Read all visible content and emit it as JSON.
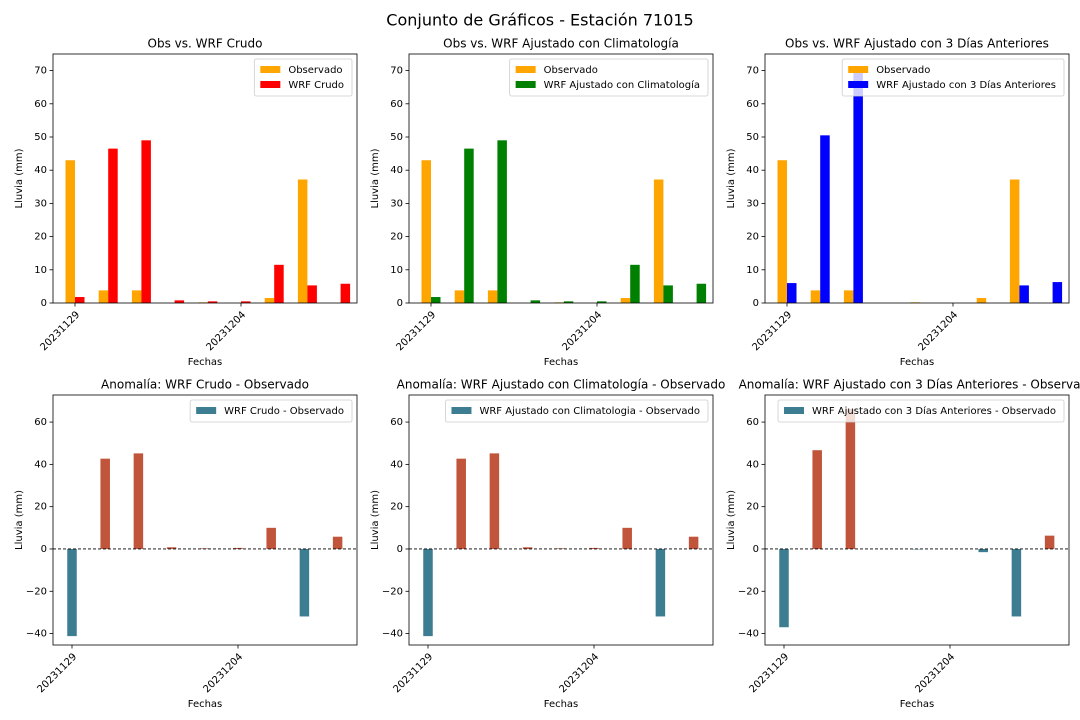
{
  "title": "Conjunto de Gráficos - Estación 71015",
  "chart_data": [
    {
      "type": "bar",
      "title": "Obs vs. WRF Crudo",
      "xlabel": "Fechas",
      "ylabel": "Lluvia (mm)",
      "categories": [
        "20231129",
        null,
        null,
        null,
        null,
        "20231204",
        null,
        null,
        null
      ],
      "series": [
        {
          "name": "Observado",
          "color": "#ffa500",
          "values": [
            43,
            3.8,
            3.8,
            0,
            0.2,
            0,
            1.5,
            37.2,
            0
          ]
        },
        {
          "name": "WRF Crudo",
          "color": "#ff0000",
          "values": [
            1.8,
            46.5,
            49,
            0.8,
            0.5,
            0.5,
            11.5,
            5.3,
            5.8
          ]
        }
      ],
      "ylim": [
        0,
        75
      ],
      "yticks": [
        0,
        10,
        20,
        30,
        40,
        50,
        60,
        70
      ],
      "legend": "upper right"
    },
    {
      "type": "bar",
      "title": "Obs vs. WRF Ajustado con Climatología",
      "xlabel": "Fechas",
      "ylabel": "Lluvia (mm)",
      "categories": [
        "20231129",
        null,
        null,
        null,
        null,
        "20231204",
        null,
        null,
        null
      ],
      "series": [
        {
          "name": "Observado",
          "color": "#ffa500",
          "values": [
            43,
            3.8,
            3.8,
            0,
            0.2,
            0,
            1.5,
            37.2,
            0
          ]
        },
        {
          "name": "WRF Ajustado con Climatología",
          "color": "#008000",
          "values": [
            1.8,
            46.5,
            49,
            0.8,
            0.5,
            0.5,
            11.5,
            5.3,
            5.8
          ]
        }
      ],
      "ylim": [
        0,
        75
      ],
      "yticks": [
        0,
        10,
        20,
        30,
        40,
        50,
        60,
        70
      ],
      "legend": "upper right"
    },
    {
      "type": "bar",
      "title": "Obs vs. WRF Ajustado con 3 Días Anteriores",
      "xlabel": "Fechas",
      "ylabel": "Lluvia (mm)",
      "categories": [
        "20231129",
        null,
        null,
        null,
        null,
        "20231204",
        null,
        null,
        null
      ],
      "series": [
        {
          "name": "Observado",
          "color": "#ffa500",
          "values": [
            43,
            3.8,
            3.8,
            0,
            0.2,
            0,
            1.5,
            37.2,
            0
          ]
        },
        {
          "name": "WRF Ajustado con 3 Días Anteriores",
          "color": "#0000ff",
          "values": [
            6,
            50.5,
            70,
            0,
            0,
            0,
            0,
            5.3,
            6.3
          ]
        }
      ],
      "ylim": [
        0,
        75
      ],
      "yticks": [
        0,
        10,
        20,
        30,
        40,
        50,
        60,
        70
      ],
      "legend": "upper right"
    },
    {
      "type": "bar",
      "title": "Anomalía: WRF Crudo - Observado",
      "xlabel": "Fechas",
      "ylabel": "Lluvia (mm)",
      "categories": [
        "20231129",
        null,
        null,
        null,
        null,
        "20231204",
        null,
        null,
        null
      ],
      "series": [
        {
          "name": "WRF Crudo - Observado",
          "color": "#3d7d91",
          "positive_color": "#c1553b",
          "values": [
            -41.2,
            42.7,
            45.2,
            0.8,
            0.3,
            0.5,
            10,
            -31.9,
            5.8
          ]
        }
      ],
      "axhline": 0,
      "ylim": [
        -45.4,
        72.8
      ],
      "yticks": [
        {
          "value": -40,
          "label": "−40"
        },
        {
          "value": -20,
          "label": "−20"
        },
        0,
        20,
        40,
        60
      ],
      "legend": "upper right"
    },
    {
      "type": "bar",
      "title": "Anomalía: WRF Ajustado con Climatología - Observado",
      "xlabel": "Fechas",
      "ylabel": "Lluvia (mm)",
      "categories": [
        "20231129",
        null,
        null,
        null,
        null,
        "20231204",
        null,
        null,
        null
      ],
      "series": [
        {
          "name": "WRF Ajustado con Climatologia - Observado",
          "color": "#3d7d91",
          "positive_color": "#c1553b",
          "values": [
            -41.2,
            42.7,
            45.2,
            0.8,
            0.3,
            0.5,
            10,
            -31.9,
            5.8
          ]
        }
      ],
      "axhline": 0,
      "ylim": [
        -45.4,
        72.8
      ],
      "yticks": [
        {
          "value": -40,
          "label": "−40"
        },
        {
          "value": -20,
          "label": "−20"
        },
        0,
        20,
        40,
        60
      ],
      "legend": "upper right"
    },
    {
      "type": "bar",
      "title": "Anomalía: WRF Ajustado con 3 Días Anteriores - Observado",
      "xlabel": "Fechas",
      "ylabel": "Lluvia (mm)",
      "categories": [
        "20231129",
        null,
        null,
        null,
        null,
        "20231204",
        null,
        null,
        null
      ],
      "series": [
        {
          "name": "WRF Ajustado con 3 Días Anteriores - Observado",
          "color": "#3d7d91",
          "positive_color": "#c1553b",
          "values": [
            -37,
            46.7,
            66.2,
            0,
            -0.2,
            0,
            -1.5,
            -31.9,
            6.3
          ]
        }
      ],
      "axhline": 0,
      "ylim": [
        -45.4,
        72.8
      ],
      "yticks": [
        {
          "value": -40,
          "label": "−40"
        },
        {
          "value": -20,
          "label": "−20"
        },
        0,
        20,
        40,
        60
      ],
      "legend": "upper right"
    }
  ]
}
